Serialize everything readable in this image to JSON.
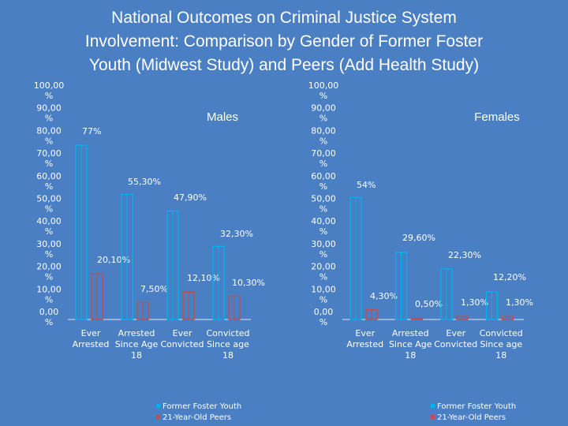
{
  "title_lines": [
    "National Outcomes on Criminal Justice System",
    "Involvement: Comparison by Gender of Former Foster",
    "Youth (Midwest Study) and Peers (Add Health Study)"
  ],
  "colors": {
    "background": "#4a7fc4",
    "foster_series": "#00b0f0",
    "peer_series": "#c0504d",
    "axis": "#d9e4f4"
  },
  "chart_data": [
    {
      "type": "bar",
      "title": "Males",
      "categories": [
        [
          "Ever",
          "Arrested"
        ],
        [
          "Arrested",
          "Since Age",
          "18"
        ],
        [
          "Ever",
          "Convicted"
        ],
        [
          "Convicted",
          "Since age",
          "18"
        ]
      ],
      "y_ticks": [
        "0,00%",
        "10,00%",
        "20,00%",
        "30,00%",
        "40,00%",
        "50,00%",
        "60,00%",
        "70,00%",
        "80,00%",
        "90,00%",
        "100,00%"
      ],
      "ylim": [
        0,
        100
      ],
      "series": [
        {
          "name": "Former Foster Youth",
          "values": [
            77,
            55.3,
            47.9,
            32.3
          ],
          "labels": [
            "77%",
            "55,30%",
            "47,90%",
            "32,30%"
          ]
        },
        {
          "name": "21-Year-Old Peers",
          "values": [
            20.1,
            7.5,
            12.1,
            10.3
          ],
          "labels": [
            "20,10%",
            "7,50%",
            "12,10%",
            "10,30%"
          ]
        }
      ],
      "legend_position": "bottom"
    },
    {
      "type": "bar",
      "title": "Females",
      "categories": [
        [
          "Ever",
          "Arrested"
        ],
        [
          "Arrested",
          "Since Age",
          "18"
        ],
        [
          "Ever",
          "Convicted"
        ],
        [
          "Convicted",
          "Since age",
          "18"
        ]
      ],
      "y_ticks": [
        "0,00%",
        "10,00%",
        "20,00%",
        "30,00%",
        "40,00%",
        "50,00%",
        "60,00%",
        "70,00%",
        "80,00%",
        "90,00%",
        "100,00%"
      ],
      "ylim": [
        0,
        100
      ],
      "series": [
        {
          "name": "Former Foster Youth",
          "values": [
            54,
            29.6,
            22.3,
            12.2
          ],
          "labels": [
            "54%",
            "29,60%",
            "22,30%",
            "12,20%"
          ]
        },
        {
          "name": "21-Year-Old Peers",
          "values": [
            4.3,
            0.5,
            1.3,
            1.3
          ],
          "labels": [
            "4,30%",
            "0,50%",
            "1,30%",
            "1,30%"
          ]
        }
      ],
      "legend_position": "bottom"
    }
  ]
}
